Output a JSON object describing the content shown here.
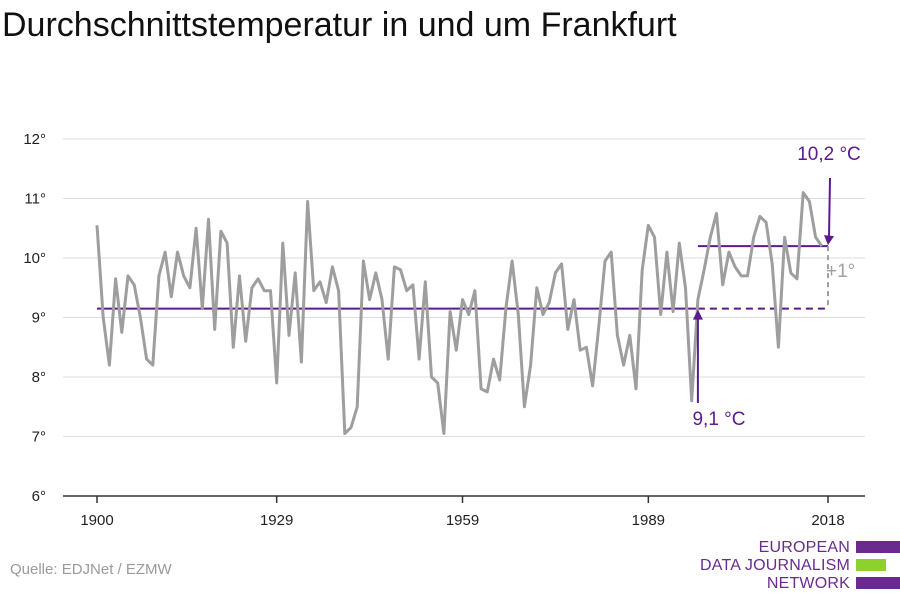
{
  "title": "Durchschnittstemperatur in und um Frankfurt",
  "source": "Quelle: EDJNet / EZMW",
  "logo": {
    "lines": [
      "EUROPEAN",
      "DATA JOURNALISM",
      "NETWORK"
    ],
    "colors": {
      "purple": "#6a2b8e",
      "green": "#8fd12c"
    }
  },
  "annotations": {
    "baseline_label": "9,1 °C",
    "recent_label": "10,2 °C",
    "difference_label": "+1°"
  },
  "colors": {
    "series": "#9e9e9e",
    "reference": "#5b1a8e",
    "grid": "#dddddd",
    "axis": "#333333",
    "difference": "#a0a0a0"
  },
  "chart_data": {
    "type": "line",
    "title": "Durchschnittstemperatur in und um Frankfurt",
    "xlabel": "",
    "ylabel": "",
    "x_ticks": [
      1900,
      1929,
      1959,
      1989,
      2018
    ],
    "y_ticks": [
      "6°",
      "7°",
      "8°",
      "9°",
      "10°",
      "11°",
      "12°"
    ],
    "y_tick_values": [
      6,
      7,
      8,
      9,
      10,
      11,
      12
    ],
    "xlim": [
      1895,
      2022
    ],
    "ylim": [
      6,
      12.3
    ],
    "grid": "horizontal",
    "series": [
      {
        "values": [
          [
            1900,
            10.55
          ],
          [
            1901,
            9.0
          ],
          [
            1902,
            8.2
          ],
          [
            1903,
            9.65
          ],
          [
            1904,
            8.75
          ],
          [
            1905,
            9.7
          ],
          [
            1906,
            9.55
          ],
          [
            1907,
            9.0
          ],
          [
            1908,
            8.3
          ],
          [
            1909,
            8.2
          ],
          [
            1910,
            9.7
          ],
          [
            1911,
            10.1
          ],
          [
            1912,
            9.35
          ],
          [
            1913,
            10.1
          ],
          [
            1914,
            9.7
          ],
          [
            1915,
            9.5
          ],
          [
            1916,
            10.5
          ],
          [
            1917,
            9.15
          ],
          [
            1918,
            10.65
          ],
          [
            1919,
            8.8
          ],
          [
            1920,
            10.45
          ],
          [
            1921,
            10.25
          ],
          [
            1922,
            8.5
          ],
          [
            1923,
            9.7
          ],
          [
            1924,
            8.6
          ],
          [
            1925,
            9.5
          ],
          [
            1926,
            9.65
          ],
          [
            1927,
            9.45
          ],
          [
            1928,
            9.45
          ],
          [
            1929,
            7.9
          ],
          [
            1930,
            10.25
          ],
          [
            1931,
            8.7
          ],
          [
            1932,
            9.75
          ],
          [
            1933,
            8.25
          ],
          [
            1934,
            10.95
          ],
          [
            1935,
            9.45
          ],
          [
            1936,
            9.6
          ],
          [
            1937,
            9.25
          ],
          [
            1938,
            9.85
          ],
          [
            1939,
            9.45
          ],
          [
            1940,
            7.05
          ],
          [
            1941,
            7.15
          ],
          [
            1942,
            7.5
          ],
          [
            1943,
            9.95
          ],
          [
            1944,
            9.3
          ],
          [
            1945,
            9.75
          ],
          [
            1946,
            9.3
          ],
          [
            1947,
            8.3
          ],
          [
            1948,
            9.85
          ],
          [
            1949,
            9.8
          ],
          [
            1950,
            9.45
          ],
          [
            1951,
            9.55
          ],
          [
            1952,
            8.3
          ],
          [
            1953,
            9.6
          ],
          [
            1954,
            8.0
          ],
          [
            1955,
            7.9
          ],
          [
            1956,
            7.05
          ],
          [
            1957,
            9.1
          ],
          [
            1958,
            8.45
          ],
          [
            1959,
            9.3
          ],
          [
            1960,
            9.05
          ],
          [
            1961,
            9.45
          ],
          [
            1962,
            7.8
          ],
          [
            1963,
            7.75
          ],
          [
            1964,
            8.3
          ],
          [
            1965,
            7.95
          ],
          [
            1966,
            9.15
          ],
          [
            1967,
            9.95
          ],
          [
            1968,
            9.05
          ],
          [
            1969,
            7.5
          ],
          [
            1970,
            8.2
          ],
          [
            1971,
            9.5
          ],
          [
            1972,
            9.05
          ],
          [
            1973,
            9.25
          ],
          [
            1974,
            9.75
          ],
          [
            1975,
            9.9
          ],
          [
            1976,
            8.8
          ],
          [
            1977,
            9.3
          ],
          [
            1978,
            8.45
          ],
          [
            1979,
            8.5
          ],
          [
            1980,
            7.85
          ],
          [
            1981,
            8.85
          ],
          [
            1982,
            9.95
          ],
          [
            1983,
            10.1
          ],
          [
            1984,
            8.7
          ],
          [
            1985,
            8.2
          ],
          [
            1986,
            8.7
          ],
          [
            1987,
            7.8
          ],
          [
            1988,
            9.8
          ],
          [
            1989,
            10.55
          ],
          [
            1990,
            10.35
          ],
          [
            1991,
            9.05
          ],
          [
            1992,
            10.1
          ],
          [
            1993,
            9.1
          ],
          [
            1994,
            10.25
          ],
          [
            1995,
            9.5
          ],
          [
            1996,
            7.6
          ],
          [
            1997,
            9.3
          ],
          [
            1998,
            9.8
          ],
          [
            1999,
            10.35
          ],
          [
            2000,
            10.75
          ],
          [
            2001,
            9.55
          ],
          [
            2002,
            10.1
          ],
          [
            2003,
            9.85
          ],
          [
            2004,
            9.7
          ],
          [
            2005,
            9.7
          ],
          [
            2006,
            10.35
          ],
          [
            2007,
            10.7
          ],
          [
            2008,
            10.6
          ],
          [
            2009,
            9.9
          ],
          [
            2010,
            8.5
          ],
          [
            2011,
            10.35
          ],
          [
            2012,
            9.75
          ],
          [
            2013,
            9.65
          ],
          [
            2014,
            11.1
          ],
          [
            2015,
            10.95
          ],
          [
            2016,
            10.35
          ],
          [
            2017,
            10.2
          ]
        ]
      }
    ],
    "reference_lines": [
      {
        "value": 9.15,
        "from": 1900,
        "to": 1997,
        "style": "solid"
      },
      {
        "value": 9.15,
        "from": 1997,
        "to": 2018,
        "style": "dashed"
      },
      {
        "value": 10.2,
        "from": 1997,
        "to": 2018,
        "style": "solid"
      }
    ]
  }
}
